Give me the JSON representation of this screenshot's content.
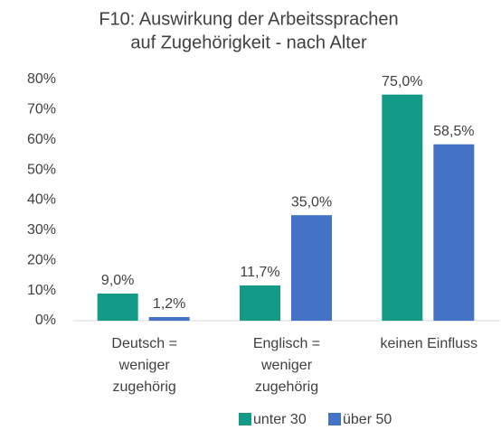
{
  "chart_data": {
    "type": "bar",
    "title": [
      "F10: Auswirkung der Arbeitssprachen",
      "auf Zugehörigkeit - nach Alter"
    ],
    "categories": [
      [
        "Deutsch =",
        "weniger",
        "zugehörig"
      ],
      [
        "Englisch =",
        "weniger",
        "zugehörig"
      ],
      [
        "keinen Einfluss"
      ]
    ],
    "series": [
      {
        "name": "unter 30",
        "color": "#139b87",
        "values": [
          9.0,
          11.7,
          75.0
        ],
        "value_labels": [
          "9,0%",
          "11,7%",
          "75,0%"
        ]
      },
      {
        "name": "über 50",
        "color": "#4472c4",
        "values": [
          1.2,
          35.0,
          58.5
        ],
        "value_labels": [
          "1,2%",
          "35,0%",
          "58,5%"
        ]
      }
    ],
    "ylim": [
      0,
      80
    ],
    "yticks": [
      {
        "value": 0,
        "label": "0%"
      },
      {
        "value": 10,
        "label": "10%"
      },
      {
        "value": 20,
        "label": "20%"
      },
      {
        "value": 30,
        "label": "30%"
      },
      {
        "value": 40,
        "label": "40%"
      },
      {
        "value": 50,
        "label": "50%"
      },
      {
        "value": 60,
        "label": "60%"
      },
      {
        "value": 70,
        "label": "70%"
      },
      {
        "value": 80,
        "label": "80%"
      }
    ],
    "grid": false,
    "legend": "bottom"
  }
}
